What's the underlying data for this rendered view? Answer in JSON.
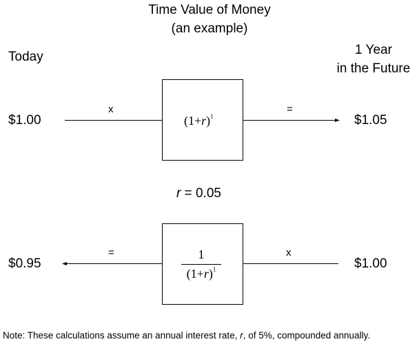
{
  "title": {
    "line1": "Time Value of Money",
    "line2": "(an example)"
  },
  "headers": {
    "today": "Today",
    "future_line1": "1 Year",
    "future_line2": "in the Future"
  },
  "top_row": {
    "left_value": "$1.00",
    "left_op": "x",
    "formula_base": "(1+",
    "formula_var": "r",
    "formula_close": ")",
    "formula_exp": "1",
    "right_op": "=",
    "right_value": "$1.05"
  },
  "rate": {
    "var": "r",
    "text": " = 0.05"
  },
  "bottom_row": {
    "left_value": "$0.95",
    "left_op": "=",
    "numerator": "1",
    "denom_base": "(1+",
    "denom_var": "r",
    "denom_close": ")",
    "denom_exp": "1",
    "right_op": "x",
    "right_value": "$1.00"
  },
  "note": {
    "prefix": "Note: These calculations assume an annual interest rate, ",
    "var": "r",
    "suffix": ", of 5%, compounded annually."
  }
}
